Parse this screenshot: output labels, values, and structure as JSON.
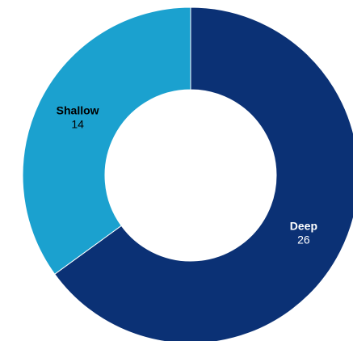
{
  "chart_data": {
    "type": "pie",
    "donut": true,
    "title": "",
    "legend": "none",
    "slices": [
      {
        "label": "Deep",
        "value": 26,
        "color": "#0b3175",
        "text_color": "#ffffff"
      },
      {
        "label": "Shallow",
        "value": 14,
        "color": "#1ba1cf",
        "text_color": "#000000"
      }
    ]
  }
}
